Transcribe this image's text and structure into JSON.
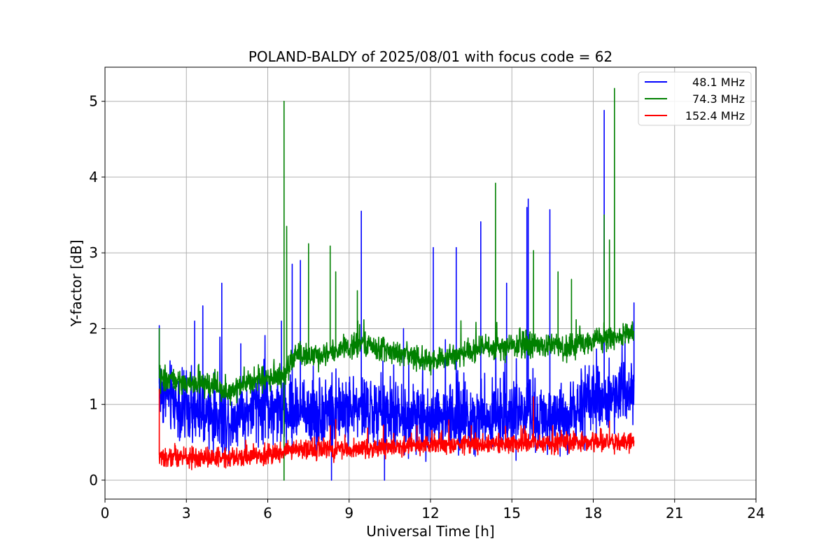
{
  "chart_data": {
    "type": "line",
    "title": "POLAND-BALDY of 2025/08/01 with focus code = 62",
    "xlabel": "Universal Time [h]",
    "ylabel": "Y-factor [dB]",
    "xlim": [
      0,
      24
    ],
    "ylim": [
      -0.25,
      5.45
    ],
    "xticks": [
      0,
      3,
      6,
      9,
      12,
      15,
      18,
      21,
      24
    ],
    "yticks": [
      0,
      1,
      2,
      3,
      4,
      5
    ],
    "grid": true,
    "legend_position": "top-right",
    "series": [
      {
        "name": "48.1 MHz",
        "color": "#0000ff",
        "baseline": [
          [
            2.0,
            1.2
          ],
          [
            3.0,
            0.9
          ],
          [
            4.5,
            0.8
          ],
          [
            6.0,
            1.0
          ],
          [
            6.5,
            0.9
          ],
          [
            8.0,
            0.9
          ],
          [
            9.5,
            0.95
          ],
          [
            11.0,
            0.8
          ],
          [
            13.0,
            0.85
          ],
          [
            15.0,
            0.85
          ],
          [
            17.0,
            0.85
          ],
          [
            18.5,
            1.1
          ],
          [
            19.5,
            1.3
          ]
        ],
        "spread": 0.4,
        "peaks": [
          [
            2.0,
            2.04
          ],
          [
            3.3,
            2.1
          ],
          [
            3.6,
            2.3
          ],
          [
            4.3,
            2.6
          ],
          [
            5.0,
            1.8
          ],
          [
            6.5,
            2.1
          ],
          [
            6.9,
            2.85
          ],
          [
            7.2,
            2.9
          ],
          [
            8.35,
            0.0
          ],
          [
            9.45,
            3.55
          ],
          [
            10.3,
            0.0
          ],
          [
            11.0,
            2.0
          ],
          [
            12.1,
            3.07
          ],
          [
            12.95,
            3.07
          ],
          [
            13.85,
            3.41
          ],
          [
            14.8,
            2.6
          ],
          [
            15.55,
            3.6
          ],
          [
            15.6,
            3.71
          ],
          [
            16.4,
            3.57
          ],
          [
            18.4,
            4.88
          ],
          [
            19.5,
            2.34
          ]
        ]
      },
      {
        "name": "74.3 MHz",
        "color": "#008000",
        "baseline": [
          [
            2.0,
            1.35
          ],
          [
            3.0,
            1.28
          ],
          [
            4.0,
            1.25
          ],
          [
            4.5,
            1.15
          ],
          [
            5.5,
            1.35
          ],
          [
            6.5,
            1.35
          ],
          [
            7.0,
            1.65
          ],
          [
            8.0,
            1.65
          ],
          [
            9.5,
            1.8
          ],
          [
            11.0,
            1.65
          ],
          [
            12.0,
            1.55
          ],
          [
            13.0,
            1.65
          ],
          [
            14.0,
            1.75
          ],
          [
            15.5,
            1.8
          ],
          [
            17.0,
            1.75
          ],
          [
            18.0,
            1.85
          ],
          [
            19.5,
            1.95
          ]
        ],
        "spread": 0.14,
        "peaks": [
          [
            2.0,
            2.0
          ],
          [
            6.6,
            0.0
          ],
          [
            6.6,
            5.0
          ],
          [
            6.7,
            3.35
          ],
          [
            7.5,
            3.12
          ],
          [
            8.3,
            3.09
          ],
          [
            8.5,
            2.75
          ],
          [
            9.3,
            2.5
          ],
          [
            14.4,
            3.92
          ],
          [
            15.8,
            3.03
          ],
          [
            16.7,
            2.75
          ],
          [
            17.2,
            2.65
          ],
          [
            18.4,
            3.5
          ],
          [
            18.6,
            3.17
          ],
          [
            18.78,
            5.17
          ]
        ]
      },
      {
        "name": "152.4 MHz",
        "color": "#ff0000",
        "baseline": [
          [
            2.0,
            0.3
          ],
          [
            4.0,
            0.3
          ],
          [
            6.0,
            0.33
          ],
          [
            7.0,
            0.42
          ],
          [
            9.0,
            0.4
          ],
          [
            11.0,
            0.45
          ],
          [
            13.0,
            0.47
          ],
          [
            15.0,
            0.48
          ],
          [
            17.0,
            0.5
          ],
          [
            19.5,
            0.5
          ]
        ],
        "spread": 0.11,
        "peaks": [
          [
            2.0,
            1.2
          ],
          [
            8.3,
            0.72
          ],
          [
            8.5,
            0.8
          ],
          [
            11.5,
            0.72
          ],
          [
            13.5,
            0.72
          ],
          [
            15.8,
            1.1
          ],
          [
            18.6,
            0.78
          ]
        ]
      }
    ]
  }
}
